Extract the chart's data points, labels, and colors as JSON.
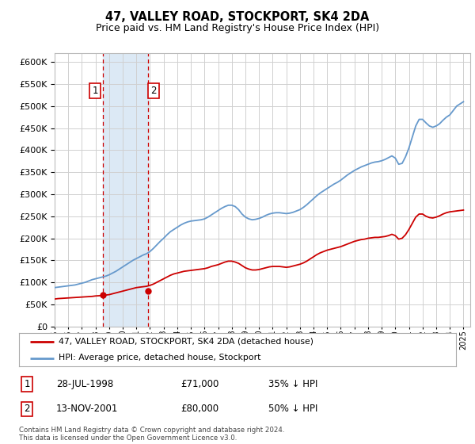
{
  "title": "47, VALLEY ROAD, STOCKPORT, SK4 2DA",
  "subtitle": "Price paid vs. HM Land Registry's House Price Index (HPI)",
  "ylim": [
    0,
    620000
  ],
  "xlim": [
    1995.0,
    2025.5
  ],
  "yticks": [
    0,
    50000,
    100000,
    150000,
    200000,
    250000,
    300000,
    350000,
    400000,
    450000,
    500000,
    550000,
    600000
  ],
  "ytick_labels": [
    "£0",
    "£50K",
    "£100K",
    "£150K",
    "£200K",
    "£250K",
    "£300K",
    "£350K",
    "£400K",
    "£450K",
    "£500K",
    "£550K",
    "£600K"
  ],
  "background_color": "#ffffff",
  "grid_color": "#d0d0d0",
  "hpi_color": "#6699cc",
  "property_color": "#cc0000",
  "shade_color": "#dce9f5",
  "transaction1_date": 1998.57,
  "transaction1_price": 71000,
  "transaction2_date": 2001.87,
  "transaction2_price": 80000,
  "footnote": "Contains HM Land Registry data © Crown copyright and database right 2024.\nThis data is licensed under the Open Government Licence v3.0.",
  "legend_label_property": "47, VALLEY ROAD, STOCKPORT, SK4 2DA (detached house)",
  "legend_label_hpi": "HPI: Average price, detached house, Stockport",
  "table_rows": [
    {
      "num": "1",
      "date": "28-JUL-1998",
      "price": "£71,000",
      "hpi": "35% ↓ HPI"
    },
    {
      "num": "2",
      "date": "13-NOV-2001",
      "price": "£80,000",
      "hpi": "50% ↓ HPI"
    }
  ],
  "hpi_x": [
    1995.0,
    1995.25,
    1995.5,
    1995.75,
    1996.0,
    1996.25,
    1996.5,
    1996.75,
    1997.0,
    1997.25,
    1997.5,
    1997.75,
    1998.0,
    1998.25,
    1998.5,
    1998.75,
    1999.0,
    1999.25,
    1999.5,
    1999.75,
    2000.0,
    2000.25,
    2000.5,
    2000.75,
    2001.0,
    2001.25,
    2001.5,
    2001.75,
    2002.0,
    2002.25,
    2002.5,
    2002.75,
    2003.0,
    2003.25,
    2003.5,
    2003.75,
    2004.0,
    2004.25,
    2004.5,
    2004.75,
    2005.0,
    2005.25,
    2005.5,
    2005.75,
    2006.0,
    2006.25,
    2006.5,
    2006.75,
    2007.0,
    2007.25,
    2007.5,
    2007.75,
    2008.0,
    2008.25,
    2008.5,
    2008.75,
    2009.0,
    2009.25,
    2009.5,
    2009.75,
    2010.0,
    2010.25,
    2010.5,
    2010.75,
    2011.0,
    2011.25,
    2011.5,
    2011.75,
    2012.0,
    2012.25,
    2012.5,
    2012.75,
    2013.0,
    2013.25,
    2013.5,
    2013.75,
    2014.0,
    2014.25,
    2014.5,
    2014.75,
    2015.0,
    2015.25,
    2015.5,
    2015.75,
    2016.0,
    2016.25,
    2016.5,
    2016.75,
    2017.0,
    2017.25,
    2017.5,
    2017.75,
    2018.0,
    2018.25,
    2018.5,
    2018.75,
    2019.0,
    2019.25,
    2019.5,
    2019.75,
    2020.0,
    2020.25,
    2020.5,
    2020.75,
    2021.0,
    2021.25,
    2021.5,
    2021.75,
    2022.0,
    2022.25,
    2022.5,
    2022.75,
    2023.0,
    2023.25,
    2023.5,
    2023.75,
    2024.0,
    2024.25,
    2024.5,
    2024.75,
    2025.0
  ],
  "hpi_y": [
    88000,
    89000,
    90000,
    91000,
    92000,
    93000,
    94000,
    96000,
    98000,
    100000,
    103000,
    106000,
    108000,
    110000,
    112000,
    114000,
    117000,
    121000,
    125000,
    130000,
    135000,
    140000,
    145000,
    150000,
    154000,
    158000,
    162000,
    165000,
    170000,
    177000,
    185000,
    193000,
    200000,
    208000,
    215000,
    220000,
    225000,
    230000,
    234000,
    237000,
    239000,
    240000,
    241000,
    242000,
    244000,
    248000,
    253000,
    258000,
    263000,
    268000,
    272000,
    275000,
    275000,
    272000,
    265000,
    255000,
    248000,
    244000,
    242000,
    243000,
    245000,
    248000,
    252000,
    255000,
    257000,
    258000,
    258000,
    257000,
    256000,
    257000,
    259000,
    262000,
    265000,
    270000,
    276000,
    283000,
    290000,
    297000,
    303000,
    308000,
    313000,
    318000,
    323000,
    327000,
    332000,
    338000,
    344000,
    349000,
    354000,
    358000,
    362000,
    365000,
    368000,
    371000,
    373000,
    374000,
    376000,
    379000,
    383000,
    387000,
    382000,
    368000,
    370000,
    385000,
    405000,
    430000,
    455000,
    470000,
    470000,
    462000,
    455000,
    452000,
    455000,
    460000,
    468000,
    475000,
    480000,
    490000,
    500000,
    505000,
    510000
  ],
  "property_x": [
    1995.0,
    1995.25,
    1995.5,
    1995.75,
    1996.0,
    1996.25,
    1996.5,
    1996.75,
    1997.0,
    1997.25,
    1997.5,
    1997.75,
    1998.0,
    1998.25,
    1998.5,
    1998.75,
    1999.0,
    1999.25,
    1999.5,
    1999.75,
    2000.0,
    2000.25,
    2000.5,
    2000.75,
    2001.0,
    2001.25,
    2001.5,
    2001.75,
    2002.0,
    2002.25,
    2002.5,
    2002.75,
    2003.0,
    2003.25,
    2003.5,
    2003.75,
    2004.0,
    2004.25,
    2004.5,
    2004.75,
    2005.0,
    2005.25,
    2005.5,
    2005.75,
    2006.0,
    2006.25,
    2006.5,
    2006.75,
    2007.0,
    2007.25,
    2007.5,
    2007.75,
    2008.0,
    2008.25,
    2008.5,
    2008.75,
    2009.0,
    2009.25,
    2009.5,
    2009.75,
    2010.0,
    2010.25,
    2010.5,
    2010.75,
    2011.0,
    2011.25,
    2011.5,
    2011.75,
    2012.0,
    2012.25,
    2012.5,
    2012.75,
    2013.0,
    2013.25,
    2013.5,
    2013.75,
    2014.0,
    2014.25,
    2014.5,
    2014.75,
    2015.0,
    2015.25,
    2015.5,
    2015.75,
    2016.0,
    2016.25,
    2016.5,
    2016.75,
    2017.0,
    2017.25,
    2017.5,
    2017.75,
    2018.0,
    2018.25,
    2018.5,
    2018.75,
    2019.0,
    2019.25,
    2019.5,
    2019.75,
    2020.0,
    2020.25,
    2020.5,
    2020.75,
    2021.0,
    2021.25,
    2021.5,
    2021.75,
    2022.0,
    2022.25,
    2022.5,
    2022.75,
    2023.0,
    2023.25,
    2023.5,
    2023.75,
    2024.0,
    2024.25,
    2024.5,
    2024.75,
    2025.0
  ],
  "property_y": [
    62000,
    63000,
    63500,
    64000,
    64500,
    65000,
    65500,
    66000,
    66500,
    67000,
    67500,
    68000,
    69000,
    69500,
    70000,
    71000,
    72000,
    74000,
    76000,
    78000,
    80000,
    82000,
    84000,
    86000,
    88000,
    89000,
    90000,
    91000,
    93000,
    96000,
    100000,
    104000,
    108000,
    112000,
    116000,
    119000,
    121000,
    123000,
    125000,
    126000,
    127000,
    128000,
    129000,
    130000,
    131000,
    133000,
    136000,
    138000,
    140000,
    143000,
    146000,
    148000,
    148000,
    146000,
    143000,
    138000,
    133000,
    130000,
    128000,
    128000,
    129000,
    131000,
    133000,
    135000,
    136000,
    136000,
    136000,
    135000,
    134000,
    135000,
    137000,
    139000,
    141000,
    144000,
    148000,
    153000,
    158000,
    163000,
    167000,
    170000,
    173000,
    175000,
    177000,
    179000,
    181000,
    184000,
    187000,
    190000,
    193000,
    195000,
    197000,
    198000,
    200000,
    201000,
    202000,
    202000,
    203000,
    204000,
    206000,
    209000,
    206000,
    198000,
    200000,
    208000,
    220000,
    234000,
    248000,
    255000,
    255000,
    250000,
    247000,
    246000,
    248000,
    251000,
    255000,
    258000,
    260000,
    261000,
    262000,
    263000,
    264000
  ]
}
